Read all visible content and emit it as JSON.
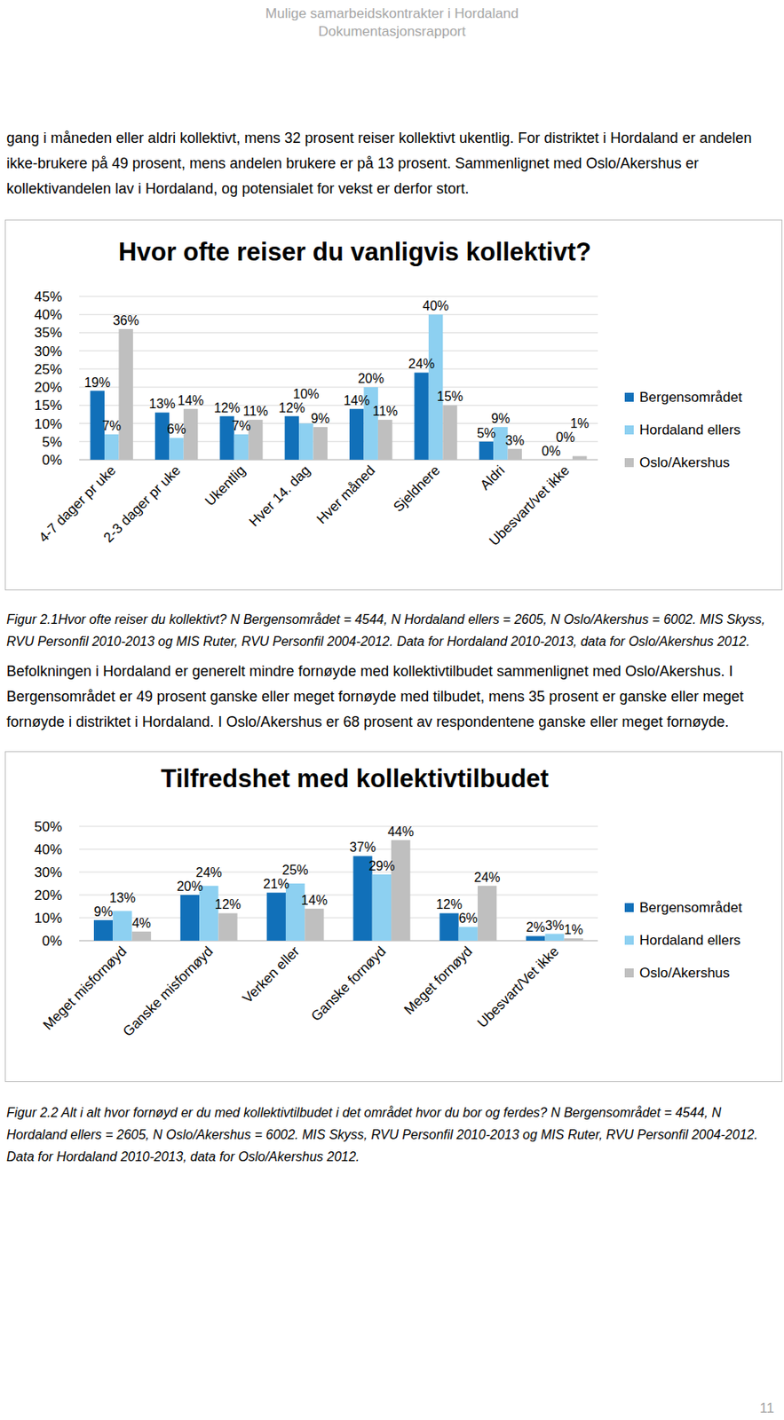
{
  "header": {
    "title": "Mulige samarbeidskontrakter i Hordaland",
    "subtitle": "Dokumentasjonsrapport"
  },
  "paragraphs": [
    "gang i måneden eller aldri kollektivt, mens 32 prosent reiser kollektivt ukentlig. For distriktet i Hordaland er andelen ikke-brukere på 49 prosent, mens andelen brukere er på 13 prosent. Sammenlignet med Oslo/Akershus er kollektivandelen lav i Hordaland, og potensialet for vekst er derfor stort.",
    "Befolkningen i Hordaland er generelt mindre fornøyde med kollektivtilbudet sammenlignet med Oslo/Akershus. I Bergensområdet er 49 prosent ganske eller meget fornøyde med tilbudet, mens 35 prosent er ganske eller meget fornøyde i distriktet i Hordaland. I Oslo/Akershus er 68 prosent av respondentene ganske eller meget fornøyde."
  ],
  "chart_data": [
    {
      "type": "bar",
      "title": "Hvor ofte reiser du vanligvis kollektivt?",
      "categories": [
        "4-7 dager pr uke",
        "2-3 dager pr uke",
        "Ukentlig",
        "Hver 14. dag",
        "Hver måned",
        "Sjeldnere",
        "Aldri",
        "Ubesvart/vet ikke"
      ],
      "series": [
        {
          "name": "Bergensområdet",
          "color": "#1170b9",
          "values": [
            19,
            13,
            12,
            12,
            14,
            24,
            5,
            0
          ],
          "value_labels": [
            "19%",
            "13%",
            "12%",
            "12%",
            "14%",
            "24%",
            "5%",
            "0%"
          ]
        },
        {
          "name": "Hordaland ellers",
          "color": "#8dd0f1",
          "values": [
            7,
            6,
            7,
            10,
            20,
            40,
            9,
            0
          ],
          "value_labels": [
            "7%",
            "6%",
            "7%",
            "10%",
            "20%",
            "40%",
            "9%",
            "0%"
          ]
        },
        {
          "name": "Oslo/Akershus",
          "color": "#bfbfbf",
          "values": [
            36,
            14,
            11,
            9,
            11,
            15,
            3,
            1
          ],
          "value_labels": [
            "36%",
            "14%",
            "11%",
            "9%",
            "11%",
            "15%",
            "3%",
            "1%"
          ]
        }
      ],
      "ylim": [
        0,
        45
      ],
      "yticks": [
        {
          "value": 0,
          "label": "0%"
        },
        {
          "value": 5,
          "label": "5%"
        },
        {
          "value": 10,
          "label": "10%"
        },
        {
          "value": 15,
          "label": "15%"
        },
        {
          "value": 20,
          "label": "20%"
        },
        {
          "value": 25,
          "label": "25%"
        },
        {
          "value": 30,
          "label": "30%"
        },
        {
          "value": 35,
          "label": "35%"
        },
        {
          "value": 40,
          "label": "40%"
        },
        {
          "value": 45,
          "label": "45%"
        }
      ],
      "grid": true,
      "legend": "right",
      "data_labels": true
    },
    {
      "type": "bar",
      "title": "Tilfredshet med kollektivtilbudet",
      "categories": [
        "Meget misfornøyd",
        "Ganske misfornøyd",
        "Verken eller",
        "Ganske fornøyd",
        "Meget fornøyd",
        "Ubesvart/Vet ikke"
      ],
      "series": [
        {
          "name": "Bergensområdet",
          "color": "#1170b9",
          "values": [
            9,
            20,
            21,
            37,
            12,
            2
          ],
          "value_labels": [
            "9%",
            "20%",
            "21%",
            "37%",
            "12%",
            "2%"
          ]
        },
        {
          "name": "Hordaland ellers",
          "color": "#8dd0f1",
          "values": [
            13,
            24,
            25,
            29,
            6,
            3
          ],
          "value_labels": [
            "13%",
            "24%",
            "25%",
            "29%",
            "6%",
            "3%"
          ]
        },
        {
          "name": "Oslo/Akershus",
          "color": "#bfbfbf",
          "values": [
            4,
            12,
            14,
            44,
            24,
            1
          ],
          "value_labels": [
            "4%",
            "12%",
            "14%",
            "44%",
            "24%",
            "1%"
          ]
        }
      ],
      "ylim": [
        0,
        50
      ],
      "yticks": [
        {
          "value": 0,
          "label": "0%"
        },
        {
          "value": 10,
          "label": "10%"
        },
        {
          "value": 20,
          "label": "20%"
        },
        {
          "value": 30,
          "label": "30%"
        },
        {
          "value": 40,
          "label": "40%"
        },
        {
          "value": 50,
          "label": "50%"
        }
      ],
      "grid": true,
      "legend": "right",
      "data_labels": true
    }
  ],
  "captions": [
    "Figur 2.1Hvor ofte reiser du kollektivt? N Bergensområdet = 4544, N Hordaland ellers = 2605, N Oslo/Akershus = 6002. MIS Skyss, RVU Personfil 2010-2013 og MIS Ruter, RVU Personfil 2004-2012. Data for Hordaland 2010-2013, data for Oslo/Akershus 2012.",
    "Figur 2.2 Alt i alt hvor fornøyd er du med kollektivtilbudet i det området hvor du bor og ferdes? N Bergensområdet = 4544, N Hordaland ellers = 2605, N Oslo/Akershus = 6002.  MIS Skyss, RVU Personfil 2010-2013 og MIS Ruter, RVU Personfil 2004-2012. Data for Hordaland 2010-2013, data for Oslo/Akershus 2012."
  ],
  "page_number": "11"
}
